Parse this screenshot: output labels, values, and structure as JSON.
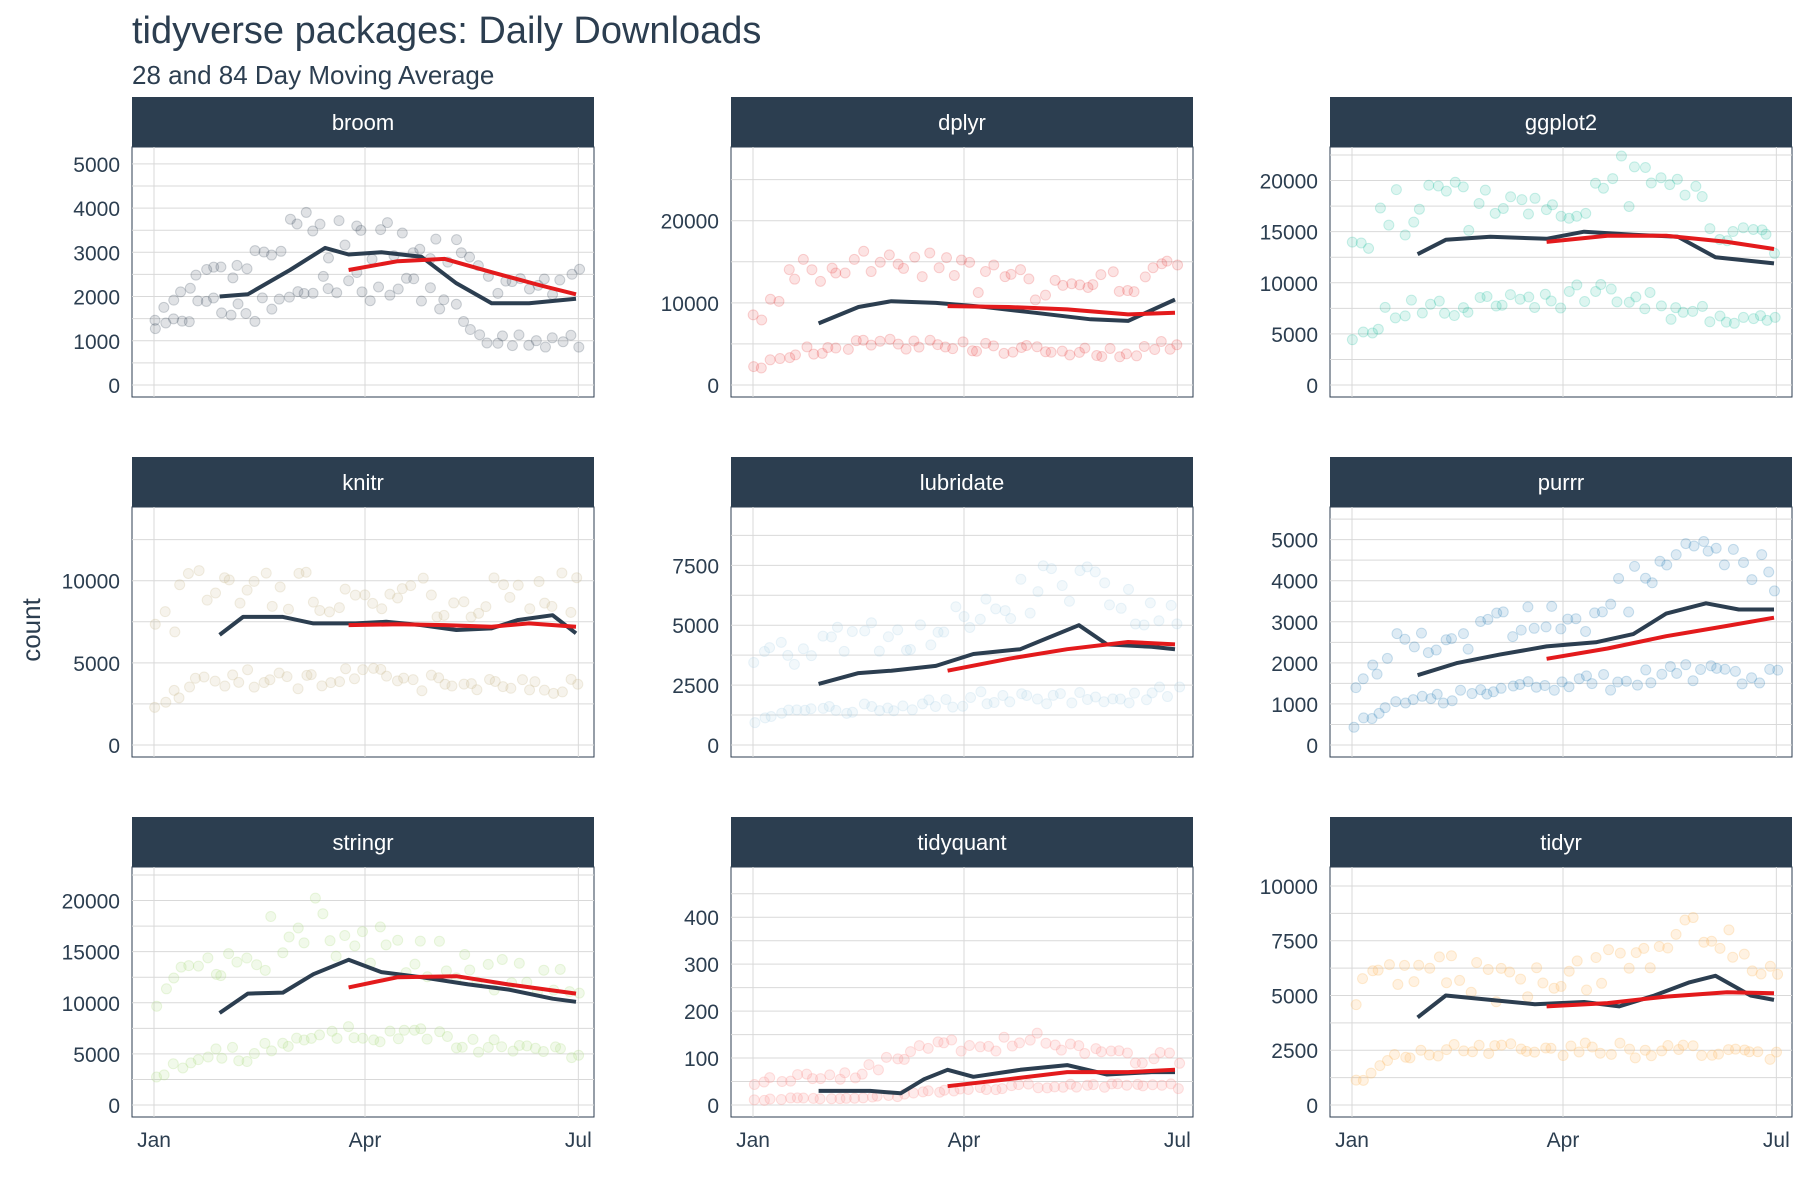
{
  "title": "tidyverse packages: Daily Downloads",
  "subtitle": "28 and 84 Day Moving Average",
  "chart_data": {
    "type": "line",
    "layout": "facet-grid-3x3",
    "x_axis": {
      "tick_labels": [
        "Jan",
        "Apr",
        "Jul"
      ],
      "range": [
        "2017-01-01",
        "2017-06-30"
      ]
    },
    "y_axis": {
      "label": "count",
      "scales": "free"
    },
    "colors": {
      "strip_bg": "#2c3e50",
      "strip_text": "#ffffff",
      "ma28": "#2c3e50",
      "ma84": "#e31a1c"
    },
    "grid": true,
    "facets": [
      {
        "name": "broom",
        "point_color": "#2c3e50",
        "point_alpha": 0.15,
        "ylim": [
          0,
          5200
        ],
        "yticks": [
          "0",
          "1000",
          "2000",
          "3000",
          "4000",
          "5000"
        ],
        "ytick_values": [
          0,
          1000,
          2000,
          3000,
          4000,
          5000
        ],
        "upper_band": [
          1500,
          2300,
          2600,
          3500,
          3200,
          3300,
          3300,
          2300,
          2200,
          2300
        ],
        "lower_band": [
          1300,
          1800,
          1600,
          2100,
          2300,
          2200,
          2000,
          1000,
          1000,
          1000
        ],
        "ma28": [
          [
            "2017-01-29",
            2000
          ],
          [
            "2017-02-10",
            2050
          ],
          [
            "2017-02-28",
            2600
          ],
          [
            "2017-03-15",
            3100
          ],
          [
            "2017-03-25",
            2950
          ],
          [
            "2017-04-08",
            3000
          ],
          [
            "2017-04-25",
            2900
          ],
          [
            "2017-05-10",
            2300
          ],
          [
            "2017-05-25",
            1850
          ],
          [
            "2017-06-10",
            1850
          ],
          [
            "2017-06-30",
            1950
          ]
        ],
        "ma84": [
          [
            "2017-03-25",
            2600
          ],
          [
            "2017-04-15",
            2800
          ],
          [
            "2017-05-05",
            2850
          ],
          [
            "2017-05-25",
            2550
          ],
          [
            "2017-06-15",
            2250
          ],
          [
            "2017-06-30",
            2050
          ]
        ]
      },
      {
        "name": "dplyr",
        "point_color": "#e31a1c",
        "point_alpha": 0.12,
        "ylim": [
          0,
          28000
        ],
        "yticks": [
          "0",
          "10000",
          "20000"
        ],
        "ytick_values": [
          0,
          10000,
          20000
        ],
        "upper_band": [
          8000,
          14000,
          14000,
          15000,
          14000,
          13000,
          12000,
          11000,
          13000,
          14000
        ],
        "lower_band": [
          2000,
          4000,
          5000,
          5000,
          5000,
          4500,
          4500,
          4000,
          4000,
          5000
        ],
        "ma28": [
          [
            "2017-01-29",
            7500
          ],
          [
            "2017-02-15",
            9500
          ],
          [
            "2017-03-01",
            10200
          ],
          [
            "2017-03-20",
            10000
          ],
          [
            "2017-04-10",
            9500
          ],
          [
            "2017-05-01",
            8800
          ],
          [
            "2017-05-25",
            8000
          ],
          [
            "2017-06-10",
            7800
          ],
          [
            "2017-06-30",
            10400
          ]
        ],
        "ma84": [
          [
            "2017-03-25",
            9600
          ],
          [
            "2017-04-20",
            9500
          ],
          [
            "2017-05-15",
            9200
          ],
          [
            "2017-06-10",
            8600
          ],
          [
            "2017-06-30",
            8800
          ]
        ]
      },
      {
        "name": "ggplot2",
        "point_color": "#18bc9c",
        "point_alpha": 0.15,
        "ylim": [
          0,
          22500
        ],
        "yticks": [
          "0",
          "5000",
          "10000",
          "15000",
          "20000"
        ],
        "ytick_values": [
          0,
          5000,
          10000,
          15000,
          20000
        ],
        "upper_band": [
          14000,
          17000,
          18000,
          17000,
          18000,
          19000,
          20000,
          18000,
          16000,
          15000
        ],
        "lower_band": [
          5000,
          7500,
          7500,
          8000,
          8500,
          9000,
          8500,
          7000,
          6500,
          6000
        ],
        "ma28": [
          [
            "2017-01-29",
            12800
          ],
          [
            "2017-02-10",
            14200
          ],
          [
            "2017-03-01",
            14500
          ],
          [
            "2017-03-25",
            14300
          ],
          [
            "2017-04-10",
            15000
          ],
          [
            "2017-05-01",
            14700
          ],
          [
            "2017-05-20",
            14500
          ],
          [
            "2017-06-05",
            12500
          ],
          [
            "2017-06-30",
            11900
          ]
        ],
        "ma84": [
          [
            "2017-03-25",
            14000
          ],
          [
            "2017-04-20",
            14600
          ],
          [
            "2017-05-15",
            14600
          ],
          [
            "2017-06-10",
            14000
          ],
          [
            "2017-06-30",
            13300
          ]
        ]
      },
      {
        "name": "knitr",
        "point_color": "#ccbe93",
        "point_alpha": 0.18,
        "ylim": [
          0,
          14000
        ],
        "yticks": [
          "0",
          "5000",
          "10000"
        ],
        "ytick_values": [
          0,
          5000,
          10000
        ],
        "upper_band": [
          7000,
          10000,
          9500,
          9500,
          9000,
          9000,
          9000,
          9000,
          9500,
          9000
        ],
        "lower_band": [
          2500,
          4000,
          4000,
          4000,
          4200,
          4000,
          3800,
          3800,
          3800,
          3500
        ],
        "ma28": [
          [
            "2017-01-29",
            6700
          ],
          [
            "2017-02-08",
            7800
          ],
          [
            "2017-02-25",
            7800
          ],
          [
            "2017-03-10",
            7400
          ],
          [
            "2017-03-28",
            7400
          ],
          [
            "2017-04-10",
            7500
          ],
          [
            "2017-04-25",
            7300
          ],
          [
            "2017-05-10",
            7000
          ],
          [
            "2017-05-25",
            7100
          ],
          [
            "2017-06-05",
            7600
          ],
          [
            "2017-06-20",
            7900
          ],
          [
            "2017-06-30",
            6800
          ]
        ],
        "ma84": [
          [
            "2017-03-25",
            7300
          ],
          [
            "2017-04-15",
            7350
          ],
          [
            "2017-05-05",
            7300
          ],
          [
            "2017-05-25",
            7200
          ],
          [
            "2017-06-10",
            7400
          ],
          [
            "2017-06-30",
            7200
          ]
        ]
      },
      {
        "name": "lubridate",
        "point_color": "#a6cee3",
        "point_alpha": 0.15,
        "ylim": [
          0,
          9600
        ],
        "yticks": [
          "0",
          "2500",
          "5000",
          "7500"
        ],
        "ytick_values": [
          0,
          2500,
          5000,
          7500
        ],
        "upper_band": [
          3500,
          4000,
          4500,
          4500,
          5000,
          5500,
          6500,
          7000,
          6000,
          5500
        ],
        "lower_band": [
          1000,
          1500,
          1500,
          1500,
          1800,
          2000,
          2000,
          2000,
          2000,
          2200
        ],
        "ma28": [
          [
            "2017-01-29",
            2550
          ],
          [
            "2017-02-15",
            3000
          ],
          [
            "2017-03-01",
            3100
          ],
          [
            "2017-03-20",
            3300
          ],
          [
            "2017-04-05",
            3800
          ],
          [
            "2017-04-25",
            4000
          ],
          [
            "2017-05-10",
            4600
          ],
          [
            "2017-05-20",
            5000
          ],
          [
            "2017-06-01",
            4200
          ],
          [
            "2017-06-20",
            4100
          ],
          [
            "2017-06-30",
            4000
          ]
        ],
        "ma84": [
          [
            "2017-03-25",
            3100
          ],
          [
            "2017-04-20",
            3600
          ],
          [
            "2017-05-15",
            4000
          ],
          [
            "2017-06-10",
            4300
          ],
          [
            "2017-06-30",
            4200
          ]
        ]
      },
      {
        "name": "purrr",
        "point_color": "#1f78b4",
        "point_alpha": 0.15,
        "ylim": [
          0,
          5600
        ],
        "yticks": [
          "0",
          "1000",
          "2000",
          "3000",
          "4000",
          "5000"
        ],
        "ytick_values": [
          0,
          1000,
          2000,
          3000,
          4000,
          5000
        ],
        "upper_band": [
          1500,
          2500,
          2600,
          2800,
          3000,
          3100,
          3800,
          4500,
          4300,
          4200
        ],
        "lower_band": [
          500,
          1000,
          1200,
          1400,
          1500,
          1500,
          1600,
          1700,
          1800,
          1600
        ],
        "ma28": [
          [
            "2017-01-29",
            1700
          ],
          [
            "2017-02-15",
            2000
          ],
          [
            "2017-03-05",
            2200
          ],
          [
            "2017-03-25",
            2400
          ],
          [
            "2017-04-15",
            2500
          ],
          [
            "2017-05-01",
            2700
          ],
          [
            "2017-05-15",
            3200
          ],
          [
            "2017-06-01",
            3450
          ],
          [
            "2017-06-15",
            3300
          ],
          [
            "2017-06-30",
            3300
          ]
        ],
        "ma84": [
          [
            "2017-03-25",
            2100
          ],
          [
            "2017-04-20",
            2350
          ],
          [
            "2017-05-15",
            2650
          ],
          [
            "2017-06-10",
            2900
          ],
          [
            "2017-06-30",
            3100
          ]
        ]
      },
      {
        "name": "stringr",
        "point_color": "#b2df8a",
        "point_alpha": 0.18,
        "ylim": [
          0,
          22500
        ],
        "yticks": [
          "0",
          "5000",
          "10000",
          "15000",
          "20000"
        ],
        "ytick_values": [
          0,
          5000,
          10000,
          15000,
          20000
        ],
        "upper_band": [
          10000,
          14000,
          14000,
          19000,
          16000,
          15000,
          14000,
          13000,
          13000,
          12000
        ],
        "lower_band": [
          3000,
          5000,
          5000,
          6000,
          7000,
          7000,
          6500,
          6000,
          5500,
          5000
        ],
        "ma28": [
          [
            "2017-01-29",
            9000
          ],
          [
            "2017-02-10",
            10900
          ],
          [
            "2017-02-25",
            11000
          ],
          [
            "2017-03-10",
            12800
          ],
          [
            "2017-03-25",
            14200
          ],
          [
            "2017-04-08",
            13000
          ],
          [
            "2017-04-25",
            12500
          ],
          [
            "2017-05-15",
            11800
          ],
          [
            "2017-06-01",
            11300
          ],
          [
            "2017-06-20",
            10400
          ],
          [
            "2017-06-30",
            10100
          ]
        ],
        "ma84": [
          [
            "2017-03-25",
            11500
          ],
          [
            "2017-04-15",
            12500
          ],
          [
            "2017-05-10",
            12600
          ],
          [
            "2017-06-01",
            11800
          ],
          [
            "2017-06-30",
            10900
          ]
        ]
      },
      {
        "name": "tidyquant",
        "point_color": "#fb9a99",
        "point_alpha": 0.2,
        "ylim": [
          0,
          490
        ],
        "yticks": [
          "0",
          "100",
          "200",
          "300",
          "400"
        ],
        "ytick_values": [
          0,
          100,
          200,
          300,
          400
        ],
        "upper_band": [
          50,
          60,
          60,
          100,
          120,
          130,
          140,
          120,
          100,
          100
        ],
        "lower_band": [
          10,
          15,
          15,
          20,
          30,
          35,
          40,
          40,
          40,
          40
        ],
        "ma28": [
          [
            "2017-01-29",
            30
          ],
          [
            "2017-02-20",
            30
          ],
          [
            "2017-03-05",
            25
          ],
          [
            "2017-03-15",
            55
          ],
          [
            "2017-03-25",
            75
          ],
          [
            "2017-04-05",
            60
          ],
          [
            "2017-04-25",
            75
          ],
          [
            "2017-05-15",
            85
          ],
          [
            "2017-06-01",
            65
          ],
          [
            "2017-06-20",
            70
          ],
          [
            "2017-06-30",
            70
          ]
        ],
        "ma84": [
          [
            "2017-03-25",
            40
          ],
          [
            "2017-04-20",
            55
          ],
          [
            "2017-05-15",
            70
          ],
          [
            "2017-06-10",
            70
          ],
          [
            "2017-06-30",
            75
          ]
        ]
      },
      {
        "name": "tidyr",
        "point_color": "#fdbf6f",
        "point_alpha": 0.2,
        "ylim": [
          0,
          10500
        ],
        "yticks": [
          "0",
          "2500",
          "5000",
          "7500",
          "10000"
        ],
        "ytick_values": [
          0,
          2500,
          5000,
          7500,
          10000
        ],
        "upper_band": [
          5000,
          6500,
          6000,
          5500,
          5500,
          6000,
          7000,
          8000,
          7000,
          6000
        ],
        "lower_band": [
          1000,
          2500,
          2500,
          2500,
          2500,
          2500,
          2500,
          2500,
          2500,
          2200
        ],
        "ma28": [
          [
            "2017-01-29",
            4000
          ],
          [
            "2017-02-10",
            5000
          ],
          [
            "2017-03-01",
            4800
          ],
          [
            "2017-03-20",
            4600
          ],
          [
            "2017-04-10",
            4700
          ],
          [
            "2017-04-25",
            4500
          ],
          [
            "2017-05-10",
            5000
          ],
          [
            "2017-05-25",
            5600
          ],
          [
            "2017-06-05",
            5900
          ],
          [
            "2017-06-20",
            5000
          ],
          [
            "2017-06-30",
            4800
          ]
        ],
        "ma84": [
          [
            "2017-03-25",
            4500
          ],
          [
            "2017-04-20",
            4650
          ],
          [
            "2017-05-15",
            4950
          ],
          [
            "2017-06-10",
            5150
          ],
          [
            "2017-06-30",
            5100
          ]
        ]
      }
    ]
  }
}
